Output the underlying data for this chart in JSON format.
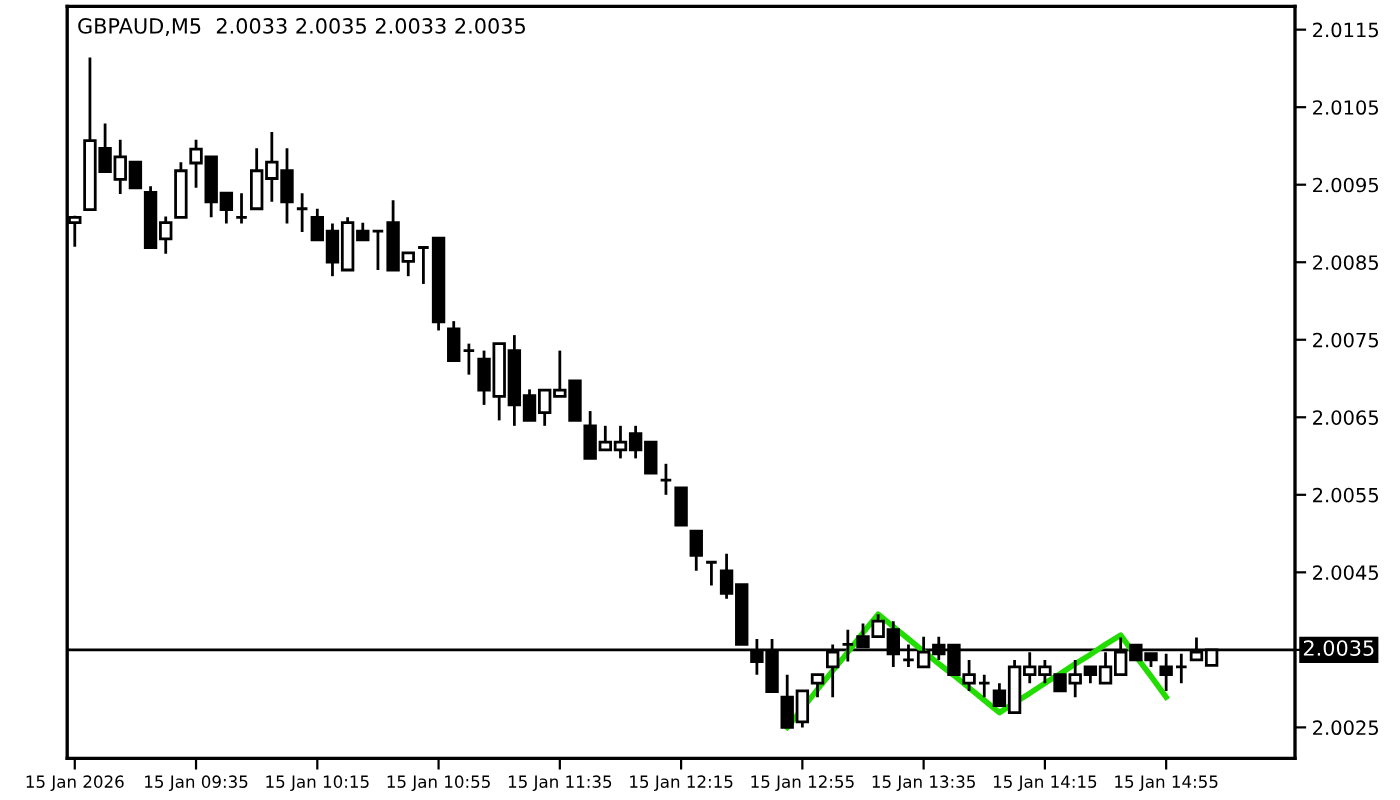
{
  "chart_data": {
    "type": "candlestick",
    "title": "GBPAUD,M5  2.0033 2.0035 2.0033 2.0035",
    "categories": [
      "15 Jan 2026",
      null,
      null,
      null,
      null,
      null,
      null,
      null,
      "15 Jan 09:35",
      null,
      null,
      null,
      null,
      null,
      null,
      null,
      "15 Jan 10:15",
      null,
      null,
      null,
      null,
      null,
      null,
      null,
      "15 Jan 10:55",
      null,
      null,
      null,
      null,
      null,
      null,
      null,
      "15 Jan 11:35",
      null,
      null,
      null,
      null,
      null,
      null,
      null,
      "15 Jan 12:15",
      null,
      null,
      null,
      null,
      null,
      null,
      null,
      "15 Jan 12:55",
      null,
      null,
      null,
      null,
      null,
      null,
      null,
      "15 Jan 13:35",
      null,
      null,
      null,
      null,
      null,
      null,
      null,
      "15 Jan 14:15",
      null,
      null,
      null,
      null,
      null,
      null,
      null,
      "15 Jan 14:55",
      null,
      null,
      null,
      null,
      null,
      null,
      null,
      null
    ],
    "ohlc": [
      [
        2.00901,
        2.0091,
        2.0087,
        2.00908
      ],
      [
        2.00918,
        2.01114,
        2.00918,
        2.01007
      ],
      [
        2.00997,
        2.01029,
        2.00967,
        2.00967
      ],
      [
        2.00957,
        2.01008,
        2.00938,
        2.00986
      ],
      [
        2.00979,
        2.00979,
        2.00946,
        2.00946
      ],
      [
        2.0094,
        2.00948,
        2.00869,
        2.00869
      ],
      [
        2.0088,
        2.00909,
        2.00861,
        2.00901
      ],
      [
        2.00908,
        2.00979,
        2.00908,
        2.00968
      ],
      [
        2.00978,
        2.01008,
        2.00946,
        2.00996
      ],
      [
        2.00986,
        2.00986,
        2.00908,
        2.00928
      ],
      [
        2.00939,
        2.00939,
        2.009,
        2.00918
      ],
      [
        2.00908,
        2.00939,
        2.009,
        2.00908
      ],
      [
        2.00919,
        2.00997,
        2.00919,
        2.00968
      ],
      [
        2.00958,
        2.01018,
        2.00928,
        2.00979
      ],
      [
        2.00968,
        2.00997,
        2.009,
        2.00928
      ],
      [
        2.00919,
        2.00939,
        2.00889,
        2.00919
      ],
      [
        2.00908,
        2.00919,
        2.00879,
        2.00879
      ],
      [
        2.0089,
        2.009,
        2.00832,
        2.0085
      ],
      [
        2.0084,
        2.00908,
        2.0084,
        2.00901
      ],
      [
        2.0089,
        2.00901,
        2.00879,
        2.00879
      ],
      [
        2.0089,
        2.0089,
        2.0084,
        2.0089
      ],
      [
        2.00901,
        2.0093,
        2.0084,
        2.0084
      ],
      [
        2.00851,
        2.00862,
        2.00832,
        2.00862
      ],
      [
        2.00869,
        2.00869,
        2.00822,
        2.00869
      ],
      [
        2.00881,
        2.00881,
        2.00762,
        2.00773
      ],
      [
        2.00764,
        2.00774,
        2.00723,
        2.00723
      ],
      [
        2.00736,
        2.00745,
        2.00705,
        2.00736
      ],
      [
        2.00725,
        2.00736,
        2.00666,
        2.00685
      ],
      [
        2.00677,
        2.00745,
        2.00646,
        2.00745
      ],
      [
        2.00736,
        2.00756,
        2.00639,
        2.00666
      ],
      [
        2.00678,
        2.00686,
        2.00646,
        2.00646
      ],
      [
        2.00656,
        2.00685,
        2.00639,
        2.00685
      ],
      [
        2.00677,
        2.00736,
        2.00677,
        2.00685
      ],
      [
        2.00697,
        2.00697,
        2.00646,
        2.00646
      ],
      [
        2.00639,
        2.00658,
        2.00597,
        2.00597
      ],
      [
        2.00608,
        2.00639,
        2.00608,
        2.00618
      ],
      [
        2.00608,
        2.00639,
        2.00597,
        2.00618
      ],
      [
        2.00629,
        2.00639,
        2.00597,
        2.00608
      ],
      [
        2.00618,
        2.00618,
        2.00578,
        2.00578
      ],
      [
        2.00569,
        2.0059,
        2.0055,
        2.00569
      ],
      [
        2.00559,
        2.00559,
        2.00511,
        2.00511
      ],
      [
        2.00503,
        2.00503,
        2.00452,
        2.00472
      ],
      [
        2.00463,
        2.00463,
        2.00433,
        2.00463
      ],
      [
        2.00452,
        2.00474,
        2.00416,
        2.00423
      ],
      [
        2.00434,
        2.00434,
        2.00357,
        2.00357
      ],
      [
        2.00347,
        2.00364,
        2.00318,
        2.00335
      ],
      [
        2.00347,
        2.00364,
        2.00296,
        2.00296
      ],
      [
        2.00289,
        2.00318,
        2.0025,
        2.0025
      ],
      [
        2.00257,
        2.00297,
        2.0025,
        2.00297
      ],
      [
        2.00307,
        2.00318,
        2.00289,
        2.00318
      ],
      [
        2.00328,
        2.00357,
        2.00289,
        2.00347
      ],
      [
        2.00357,
        2.00376,
        2.00335,
        2.00357
      ],
      [
        2.00367,
        2.00384,
        2.00354,
        2.00354
      ],
      [
        2.00367,
        2.00396,
        2.00367,
        2.00387
      ],
      [
        2.00376,
        2.00387,
        2.00328,
        2.00345
      ],
      [
        2.00337,
        2.00357,
        2.00328,
        2.00337
      ],
      [
        2.00328,
        2.00367,
        2.00328,
        2.00347
      ],
      [
        2.00356,
        2.00367,
        2.00337,
        2.00345
      ],
      [
        2.00356,
        2.00356,
        2.00318,
        2.00318
      ],
      [
        2.00307,
        2.00337,
        2.00297,
        2.00318
      ],
      [
        2.00307,
        2.00318,
        2.00289,
        2.00307
      ],
      [
        2.00297,
        2.00307,
        2.00278,
        2.00278
      ],
      [
        2.00269,
        2.00337,
        2.00269,
        2.00328
      ],
      [
        2.00318,
        2.00347,
        2.00307,
        2.00328
      ],
      [
        2.00318,
        2.00337,
        2.00307,
        2.00328
      ],
      [
        2.00318,
        2.00318,
        2.00297,
        2.00297
      ],
      [
        2.00307,
        2.00337,
        2.00289,
        2.00318
      ],
      [
        2.00328,
        2.00328,
        2.00307,
        2.00318
      ],
      [
        2.00307,
        2.00347,
        2.00307,
        2.00328
      ],
      [
        2.00318,
        2.00366,
        2.00318,
        2.00347
      ],
      [
        2.00356,
        2.00356,
        2.00337,
        2.00337
      ],
      [
        2.00345,
        2.00345,
        2.00328,
        2.00337
      ],
      [
        2.00328,
        2.00345,
        2.00297,
        2.00318
      ],
      [
        2.00328,
        2.00345,
        2.00307,
        2.00328
      ],
      [
        2.00337,
        2.00366,
        2.00337,
        2.00347
      ],
      [
        2.0033,
        2.0035,
        2.0033,
        2.0035
      ],
      null,
      null,
      null,
      null,
      null
    ],
    "series": [
      {
        "type": "line",
        "color": "#22dd00",
        "values": [
          null,
          null,
          null,
          null,
          null,
          null,
          null,
          null,
          null,
          null,
          null,
          null,
          null,
          null,
          null,
          null,
          null,
          null,
          null,
          null,
          null,
          null,
          null,
          null,
          null,
          null,
          null,
          null,
          null,
          null,
          null,
          null,
          null,
          null,
          null,
          null,
          null,
          null,
          null,
          null,
          null,
          null,
          null,
          null,
          null,
          null,
          null,
          2.0025,
          2.00274,
          2.00299,
          2.00323,
          2.00347,
          2.00372,
          2.00396,
          2.0038,
          2.00364,
          2.00348,
          2.00332,
          2.00317,
          2.00301,
          2.00285,
          2.00269,
          2.00282,
          2.00294,
          2.00307,
          2.00319,
          2.00332,
          2.00344,
          2.00357,
          2.00369,
          2.00342,
          2.00316,
          2.00289,
          null,
          null,
          null,
          null,
          null,
          null,
          null,
          null
        ]
      }
    ],
    "ref_lines": [
      {
        "axis": "y",
        "value": 2.0035,
        "label": "2.0035",
        "color": "#000000"
      }
    ],
    "ylim": [
      2.0021,
      2.0118
    ],
    "yticks": [
      2.0025,
      2.0035,
      2.0045,
      2.0055,
      2.0065,
      2.0075,
      2.0085,
      2.0095,
      2.0105,
      2.0115
    ],
    "grid": false,
    "legend": false
  }
}
